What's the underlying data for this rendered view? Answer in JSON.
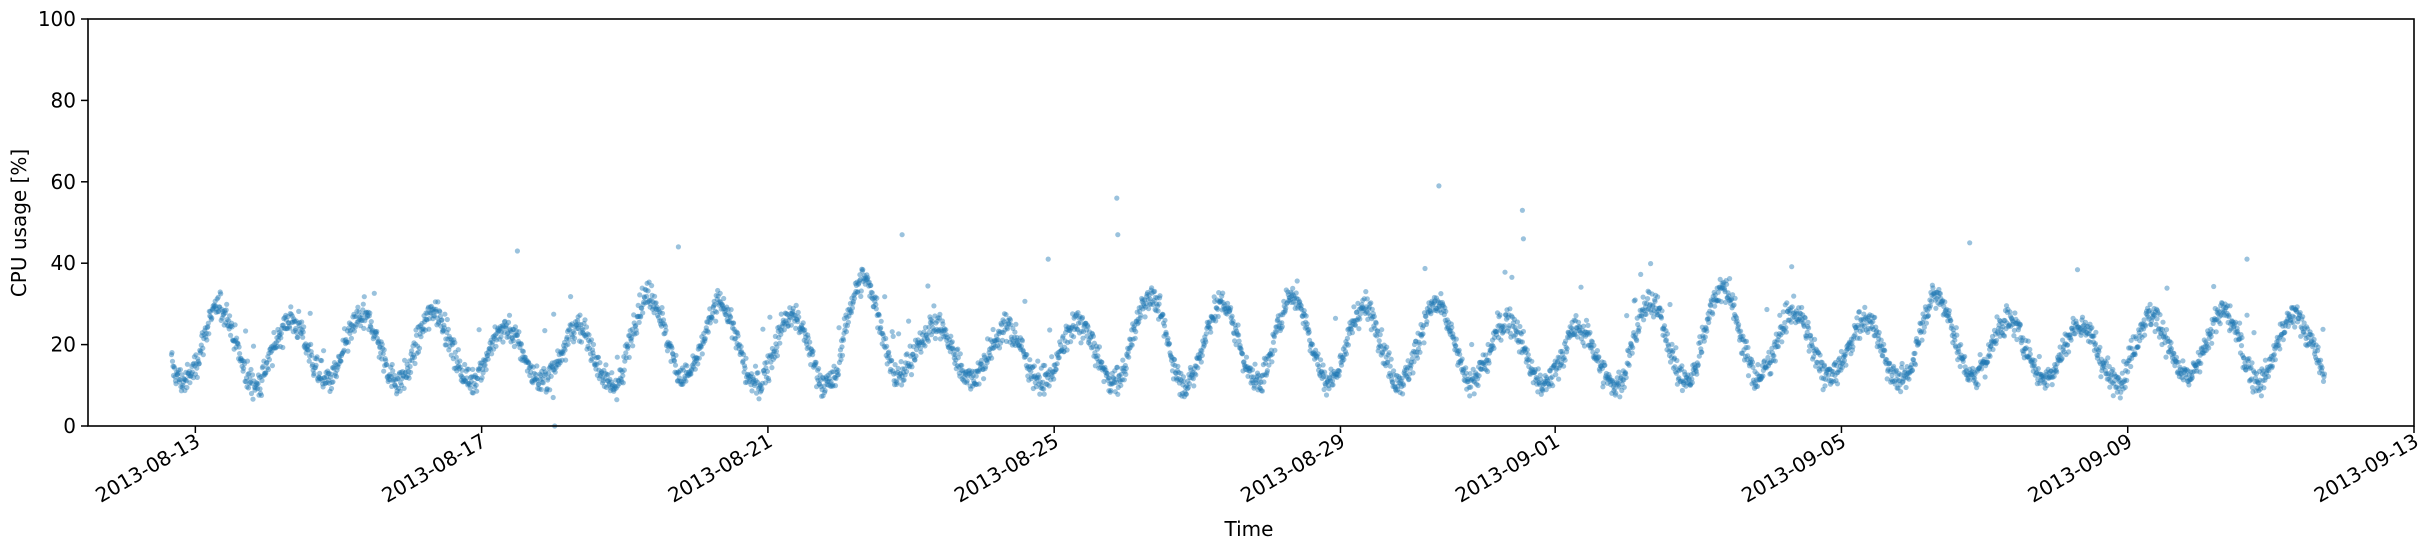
{
  "chart_data": {
    "type": "scatter",
    "title": "",
    "xlabel": "Time",
    "ylabel": "CPU usage [%]",
    "x_range": [
      "2013-08-11T12:00",
      "2013-09-13T00:00"
    ],
    "ylim": [
      0,
      100
    ],
    "y_ticks": [
      "0",
      "20",
      "40",
      "60",
      "80",
      "100"
    ],
    "x_ticks": [
      {
        "date": "2013-08-13",
        "label": "2013-08-13"
      },
      {
        "date": "2013-08-17",
        "label": "2013-08-17"
      },
      {
        "date": "2013-08-21",
        "label": "2013-08-21"
      },
      {
        "date": "2013-08-25",
        "label": "2013-08-25"
      },
      {
        "date": "2013-08-29",
        "label": "2013-08-29"
      },
      {
        "date": "2013-09-01",
        "label": "2013-09-01"
      },
      {
        "date": "2013-09-05",
        "label": "2013-09-05"
      },
      {
        "date": "2013-09-09",
        "label": "2013-09-09"
      },
      {
        "date": "2013-09-13",
        "label": "2013-09-13"
      }
    ],
    "grid": false,
    "series_color": "#1f77b4",
    "point_opacity": 0.45,
    "series": [
      {
        "x_start": "2013-08-12T16:00",
        "x_end": "2013-09-11T18:00",
        "sample_interval_minutes": 10,
        "daily_cycle": {
          "peak_hour": 8,
          "trough_hour": 20,
          "daily_values": [
            {
              "date": "2013-08-12",
              "peak": 28,
              "trough": 11
            },
            {
              "date": "2013-08-13",
              "peak": 29,
              "trough": 10
            },
            {
              "date": "2013-08-14",
              "peak": 26,
              "trough": 11
            },
            {
              "date": "2013-08-15",
              "peak": 27,
              "trough": 11
            },
            {
              "date": "2013-08-16",
              "peak": 28,
              "trough": 11
            },
            {
              "date": "2013-08-17",
              "peak": 24,
              "trough": 11
            },
            {
              "date": "2013-08-18",
              "peak": 24,
              "trough": 10
            },
            {
              "date": "2013-08-19",
              "peak": 32,
              "trough": 12
            },
            {
              "date": "2013-08-20",
              "peak": 30,
              "trough": 10
            },
            {
              "date": "2013-08-21",
              "peak": 27,
              "trough": 10
            },
            {
              "date": "2013-08-22",
              "peak": 36,
              "trough": 12
            },
            {
              "date": "2013-08-23",
              "peak": 25,
              "trough": 12
            },
            {
              "date": "2013-08-24",
              "peak": 24,
              "trough": 11
            },
            {
              "date": "2013-08-25",
              "peak": 25,
              "trough": 11
            },
            {
              "date": "2013-08-26",
              "peak": 32,
              "trough": 10
            },
            {
              "date": "2013-08-27",
              "peak": 30,
              "trough": 11
            },
            {
              "date": "2013-08-28",
              "peak": 32,
              "trough": 11
            },
            {
              "date": "2013-08-29",
              "peak": 29,
              "trough": 11
            },
            {
              "date": "2013-08-30",
              "peak": 30,
              "trough": 11
            },
            {
              "date": "2013-08-31",
              "peak": 26,
              "trough": 10
            },
            {
              "date": "2013-09-01",
              "peak": 24,
              "trough": 10
            },
            {
              "date": "2013-09-02",
              "peak": 30,
              "trough": 11
            },
            {
              "date": "2013-09-03",
              "peak": 34,
              "trough": 12
            },
            {
              "date": "2013-09-04",
              "peak": 28,
              "trough": 12
            },
            {
              "date": "2013-09-05",
              "peak": 26,
              "trough": 11
            },
            {
              "date": "2013-09-06",
              "peak": 32,
              "trough": 12
            },
            {
              "date": "2013-09-07",
              "peak": 26,
              "trough": 12
            },
            {
              "date": "2013-09-08",
              "peak": 25,
              "trough": 11
            },
            {
              "date": "2013-09-09",
              "peak": 27,
              "trough": 12
            },
            {
              "date": "2013-09-10",
              "peak": 28,
              "trough": 11
            },
            {
              "date": "2013-09-11",
              "peak": 27,
              "trough": 12
            }
          ]
        },
        "outliers": [
          {
            "x": "2013-08-17T12:00",
            "y": 43
          },
          {
            "x": "2013-08-18T00:00",
            "y": 7
          },
          {
            "x": "2013-08-18T00:30",
            "y": 0
          },
          {
            "x": "2013-08-19T18:00",
            "y": 44
          },
          {
            "x": "2013-08-22T21:00",
            "y": 47
          },
          {
            "x": "2013-08-24T22:00",
            "y": 41
          },
          {
            "x": "2013-08-25T21:00",
            "y": 56
          },
          {
            "x": "2013-08-25T21:20",
            "y": 47
          },
          {
            "x": "2013-08-30T09:00",
            "y": 59
          },
          {
            "x": "2013-08-31T13:00",
            "y": 53
          },
          {
            "x": "2013-08-31T13:20",
            "y": 46
          },
          {
            "x": "2013-09-06T19:00",
            "y": 45
          },
          {
            "x": "2013-09-10T16:00",
            "y": 41
          }
        ]
      }
    ]
  }
}
